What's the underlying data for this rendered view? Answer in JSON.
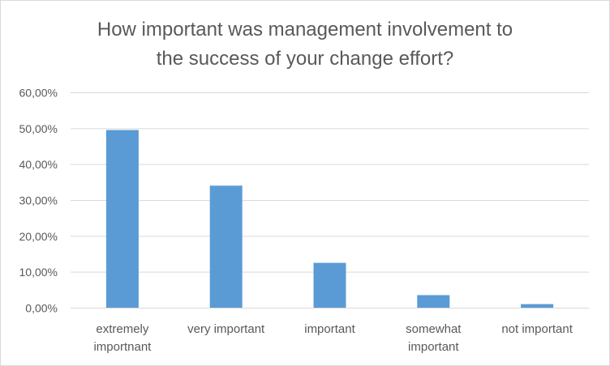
{
  "chart_data": {
    "type": "bar",
    "title_lines": [
      "How important was management involvement to",
      "the success of your change effort?"
    ],
    "categories": [
      [
        "extremely",
        "importnant"
      ],
      [
        "very important"
      ],
      [
        "important"
      ],
      [
        "somewhat",
        "important"
      ],
      [
        "not important"
      ]
    ],
    "values": [
      49.5,
      34.0,
      12.5,
      3.5,
      1.0
    ],
    "ylim": [
      0,
      60
    ],
    "yticks": [
      0,
      10,
      20,
      30,
      40,
      50,
      60
    ],
    "ytick_labels": [
      "0,00%",
      "10,00%",
      "20,00%",
      "30,00%",
      "40,00%",
      "50,00%",
      "60,00%"
    ],
    "grid": true,
    "legend": "none",
    "bar_color": "#5b9bd5",
    "grid_color": "#d9d9d9"
  }
}
